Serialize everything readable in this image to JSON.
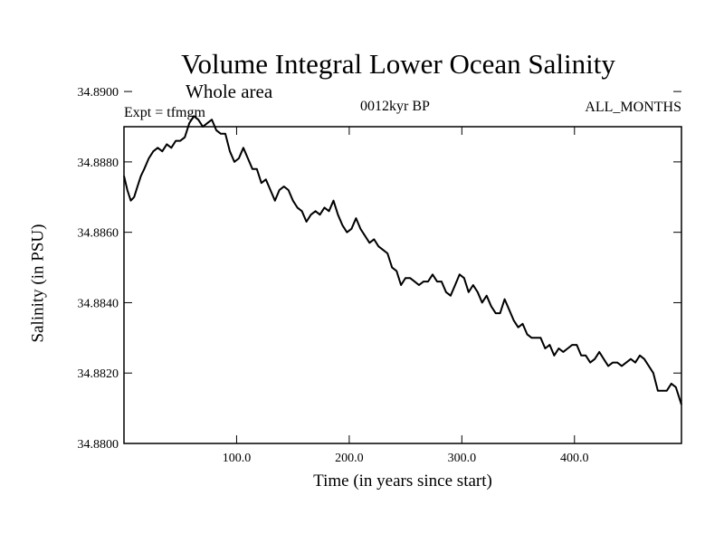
{
  "chart_data": {
    "type": "line",
    "title": "Volume Integral Lower Ocean Salinity",
    "subtitle": "Whole area",
    "left_note": "Expt = tfmgm",
    "center_note": "0012kyr BP",
    "right_note": "ALL_MONTHS",
    "xlabel": "Time (in years since start)",
    "ylabel": "Salinity (in PSU)",
    "xlim": [
      0,
      495
    ],
    "ylim": [
      34.88,
      34.889
    ],
    "x_ticks": [
      100,
      200,
      300,
      400
    ],
    "x_tick_labels": [
      "100.0",
      "200.0",
      "300.0",
      "400.0"
    ],
    "y_ticks": [
      34.88,
      34.882,
      34.884,
      34.886,
      34.888,
      34.89
    ],
    "y_tick_labels": [
      "34.8800",
      "34.8820",
      "34.8840",
      "34.8860",
      "34.8880",
      "34.8900"
    ],
    "grid": false,
    "legend": "none",
    "line_color": "#000000",
    "series": [
      {
        "x": [
          0,
          3,
          6,
          9,
          12,
          15,
          18,
          22,
          26,
          30,
          34,
          38,
          42,
          46,
          50,
          54,
          58,
          62,
          66,
          70,
          74,
          78,
          82,
          86,
          90,
          94,
          98,
          102,
          106,
          110,
          114,
          118,
          122,
          126,
          130,
          134,
          138,
          142,
          146,
          150,
          154,
          158,
          162,
          166,
          170,
          174,
          178,
          182,
          186,
          190,
          194,
          198,
          202,
          206,
          210,
          214,
          218,
          222,
          226,
          230,
          234,
          238,
          242,
          246,
          250,
          254,
          258,
          262,
          266,
          270,
          274,
          278,
          282,
          286,
          290,
          294,
          298,
          302,
          306,
          310,
          314,
          318,
          322,
          326,
          330,
          334,
          338,
          342,
          346,
          350,
          354,
          358,
          362,
          366,
          370,
          374,
          378,
          382,
          386,
          390,
          394,
          398,
          402,
          406,
          410,
          414,
          418,
          422,
          426,
          430,
          434,
          438,
          442,
          446,
          450,
          454,
          458,
          462,
          466,
          470,
          474,
          478,
          482,
          486,
          490,
          495
        ],
        "y": [
          34.8876,
          34.8872,
          34.8869,
          34.887,
          34.8873,
          34.8876,
          34.8878,
          34.8881,
          34.8883,
          34.8884,
          34.8883,
          34.8885,
          34.8884,
          34.8886,
          34.8886,
          34.8887,
          34.8891,
          34.8893,
          34.8892,
          34.889,
          34.8891,
          34.8892,
          34.8889,
          34.8888,
          34.8888,
          34.8883,
          34.888,
          34.8881,
          34.8884,
          34.8881,
          34.8878,
          34.8878,
          34.8874,
          34.8875,
          34.8872,
          34.8869,
          34.8872,
          34.8873,
          34.8872,
          34.8869,
          34.8867,
          34.8866,
          34.8863,
          34.8865,
          34.8866,
          34.8865,
          34.8867,
          34.8866,
          34.8869,
          34.8865,
          34.8862,
          34.886,
          34.8861,
          34.8864,
          34.8861,
          34.8859,
          34.8857,
          34.8858,
          34.8856,
          34.8855,
          34.8854,
          34.885,
          34.8849,
          34.8845,
          34.8847,
          34.8847,
          34.8846,
          34.8845,
          34.8846,
          34.8846,
          34.8848,
          34.8846,
          34.8846,
          34.8843,
          34.8842,
          34.8845,
          34.8848,
          34.8847,
          34.8843,
          34.8845,
          34.8843,
          34.884,
          34.8842,
          34.8839,
          34.8837,
          34.8837,
          34.8841,
          34.8838,
          34.8835,
          34.8833,
          34.8834,
          34.8831,
          34.883,
          34.883,
          34.883,
          34.8827,
          34.8828,
          34.8825,
          34.8827,
          34.8826,
          34.8827,
          34.8828,
          34.8828,
          34.8825,
          34.8825,
          34.8823,
          34.8824,
          34.8826,
          34.8824,
          34.8822,
          34.8823,
          34.8823,
          34.8822,
          34.8823,
          34.8824,
          34.8823,
          34.8825,
          34.8824,
          34.8822,
          34.882,
          34.8815,
          34.8815,
          34.8815,
          34.8817,
          34.8816,
          34.8811
        ]
      }
    ]
  }
}
